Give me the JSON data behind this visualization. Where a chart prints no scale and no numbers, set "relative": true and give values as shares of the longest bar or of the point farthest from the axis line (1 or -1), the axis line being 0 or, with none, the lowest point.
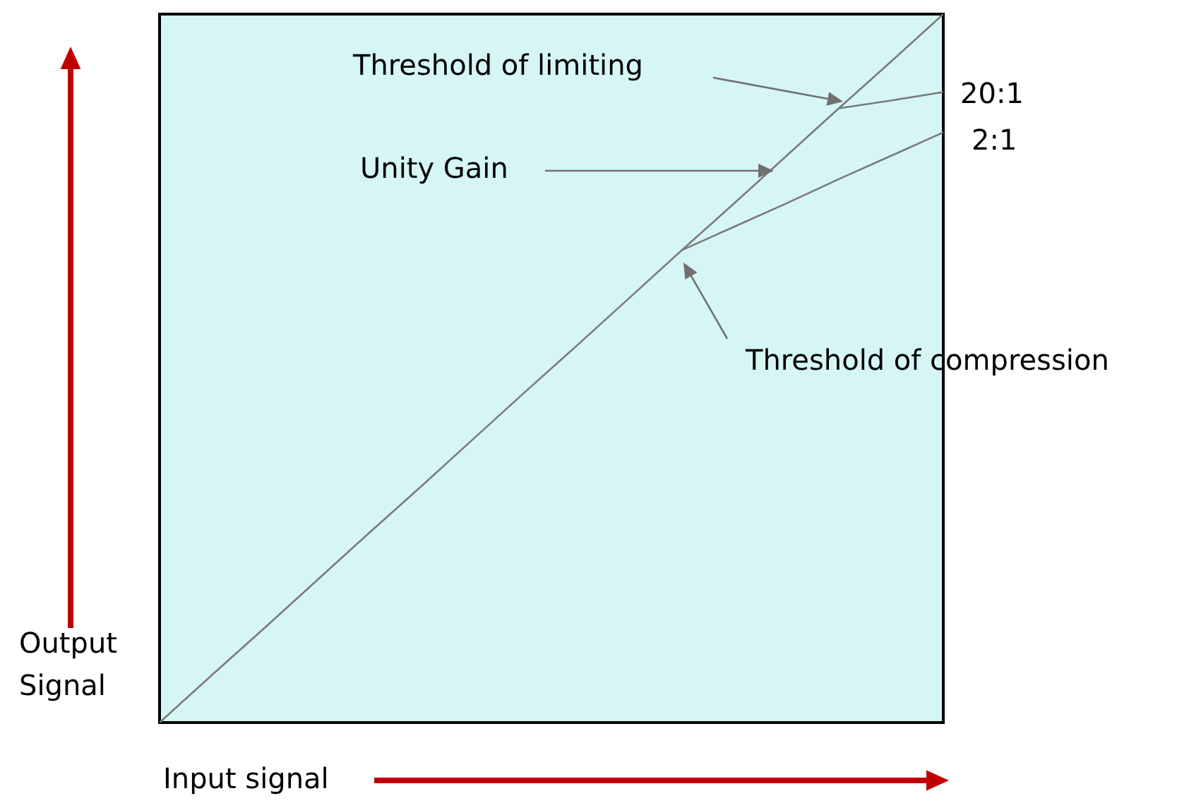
{
  "chart_data": {
    "type": "line",
    "relative": true,
    "xlabel": "Input signal",
    "ylabel": "Output Signal",
    "grid": false,
    "line_style": "solid",
    "categories": [
      null,
      null,
      null,
      null,
      null,
      null,
      null,
      null,
      null,
      null,
      null,
      null,
      null,
      null,
      null,
      null
    ],
    "series": [
      {
        "color": "#7a7a7a",
        "values": [
          0,
          0.067,
          0.133,
          0.2,
          0.267,
          0.333,
          0.4,
          0.467,
          0.533,
          0.6,
          0.667,
          0.733,
          0.8,
          0.867,
          0.933,
          1
        ]
      },
      {
        "name": "2:1",
        "color": "#7a7a7a",
        "values": [
          null,
          null,
          null,
          null,
          null,
          null,
          null,
          null,
          null,
          null,
          0.667,
          0.7,
          0.733,
          0.767,
          0.8,
          0.833
        ]
      },
      {
        "name": "20:1",
        "color": "#7a7a7a",
        "values": [
          null,
          null,
          null,
          null,
          null,
          null,
          null,
          null,
          null,
          null,
          null,
          null,
          null,
          0.867,
          0.878,
          0.89
        ]
      }
    ],
    "annotations": [
      "Threshold of limiting",
      "Unity Gain",
      "Threshold of compression"
    ]
  }
}
